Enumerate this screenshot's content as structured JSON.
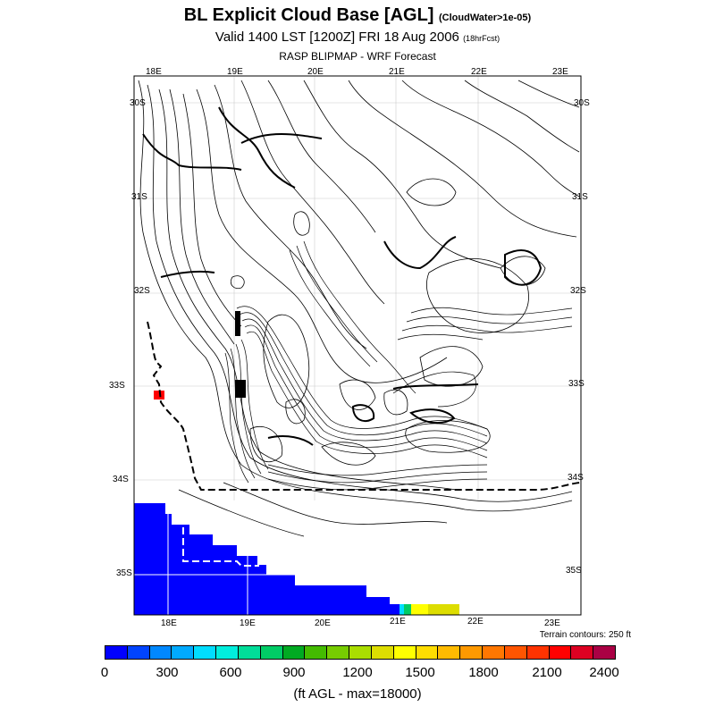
{
  "header": {
    "title": "BL Explicit Cloud Base [AGL]",
    "title_note": "(CloudWater>1e-05)",
    "valid": "Valid 1400 LST [1200Z] FRI 18 Aug 2006",
    "valid_note": "(18hrFcst)",
    "subtitle": "RASP BLIPMAP - WRF Forecast"
  },
  "map": {
    "lon_labels_top": [
      "18E",
      "19E",
      "20E",
      "21E",
      "22E",
      "23E"
    ],
    "lon_labels_bottom": [
      "18E",
      "19E",
      "20E",
      "21E",
      "22E",
      "23E"
    ],
    "lat_labels_left": [
      "30S",
      "31S",
      "32S",
      "33S",
      "34S",
      "35S"
    ],
    "lat_labels_right": [
      "30S",
      "31S",
      "32S",
      "33S",
      "34S",
      "35S"
    ],
    "terrain_note": "Terrain contours: 250 ft",
    "ocean_color": "#0000ff",
    "point_color": "#ff0000"
  },
  "colorbar": {
    "colors": [
      "#0000ff",
      "#0044ff",
      "#0088ff",
      "#00aaff",
      "#00ddff",
      "#00eedd",
      "#00dd99",
      "#00cc66",
      "#00aa22",
      "#44bb00",
      "#77cc00",
      "#aadd00",
      "#dddd00",
      "#ffff00",
      "#ffdd00",
      "#ffbb00",
      "#ff9900",
      "#ff7700",
      "#ff5500",
      "#ff3300",
      "#ff0000",
      "#dd0022",
      "#aa0044"
    ],
    "tick_labels": [
      "0",
      "300",
      "600",
      "900",
      "1200",
      "1500",
      "1800",
      "2100",
      "2400"
    ],
    "units": "(ft AGL - max=18000)"
  }
}
